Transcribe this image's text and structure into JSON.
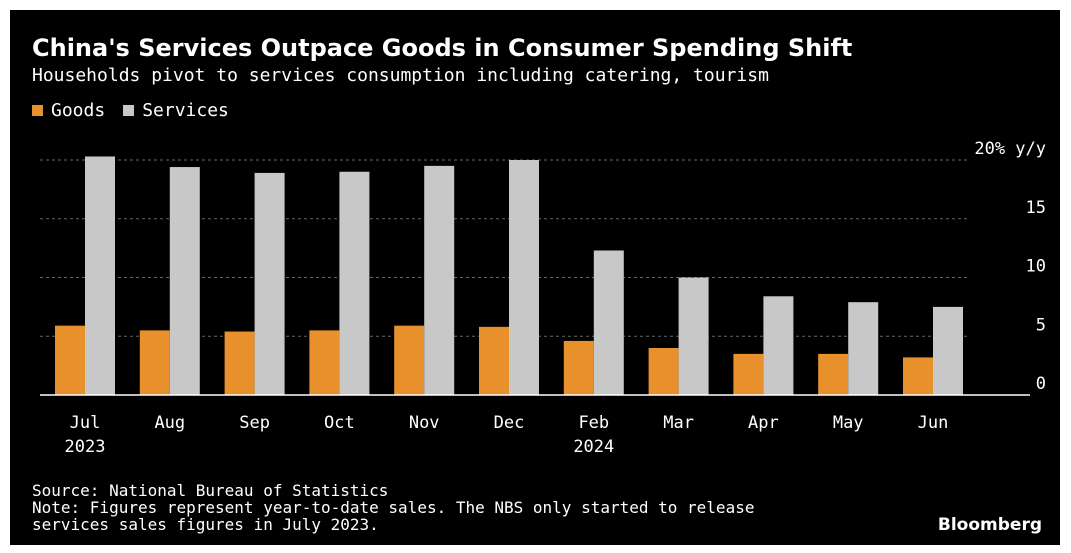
{
  "chart_data": {
    "type": "bar",
    "title": "China's Services Outpace Goods in Consumer Spending Shift",
    "subtitle": "Households pivot to services consumption including catering, tourism",
    "categories": [
      "Jul",
      "Aug",
      "Sep",
      "Oct",
      "Nov",
      "Dec",
      "Feb",
      "Mar",
      "Apr",
      "May",
      "Jun"
    ],
    "year_labels": [
      "2023",
      "",
      "",
      "",
      "",
      "",
      "2024",
      "",
      "",
      "",
      ""
    ],
    "series": [
      {
        "name": "Goods",
        "color": "#e8912c",
        "values": [
          5.9,
          5.5,
          5.4,
          5.5,
          5.9,
          5.8,
          4.6,
          4.0,
          3.5,
          3.5,
          3.2
        ]
      },
      {
        "name": "Services",
        "color": "#c8c8c8",
        "values": [
          20.3,
          19.4,
          18.9,
          19.0,
          19.5,
          20.0,
          12.3,
          10.0,
          8.4,
          7.9,
          7.5
        ]
      }
    ],
    "ylim": [
      0,
      20
    ],
    "yticks": [
      0,
      5,
      10,
      15,
      20
    ],
    "ytick_labels": [
      "0",
      "5",
      "10",
      "15",
      "20% y/y"
    ],
    "ylabel": "",
    "xlabel": "",
    "grid": true,
    "legend_position": "top-left"
  },
  "footer": {
    "source": "Source: National Bureau of Statistics",
    "note_line1": "Note: Figures represent year-to-date sales. The NBS only started to release",
    "note_line2": "services sales figures in July 2023."
  },
  "brand": "Bloomberg",
  "colors": {
    "background": "#000000",
    "text": "#ffffff",
    "grid": "#666666"
  }
}
